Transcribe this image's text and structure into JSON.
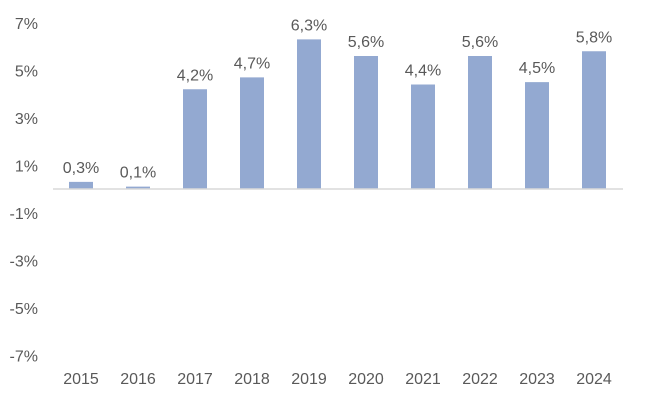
{
  "chart_data": {
    "type": "bar",
    "title": "",
    "xlabel": "",
    "ylabel": "",
    "categories": [
      "2015",
      "2016",
      "2017",
      "2018",
      "2019",
      "2020",
      "2021",
      "2022",
      "2023",
      "2024"
    ],
    "values": [
      0.3,
      0.1,
      4.2,
      4.7,
      6.3,
      5.6,
      4.4,
      5.6,
      4.5,
      5.8
    ],
    "data_labels": [
      "0,3%",
      "0,1%",
      "4,2%",
      "4,7%",
      "6,3%",
      "5,6%",
      "4,4%",
      "5,6%",
      "4,5%",
      "5,8%"
    ],
    "yticks": [
      7,
      5,
      3,
      1,
      -1,
      -3,
      -5,
      -7
    ],
    "ytick_labels": [
      "7%",
      "5%",
      "3%",
      "1%",
      "-1%",
      "-3%",
      "-5%",
      "-7%"
    ],
    "ylim": [
      -7.5,
      7.5
    ],
    "grid": false,
    "legend": "none",
    "colors": {
      "bar": "#93A9D1",
      "axis": "#D9D9D9",
      "text": "#595959"
    }
  }
}
